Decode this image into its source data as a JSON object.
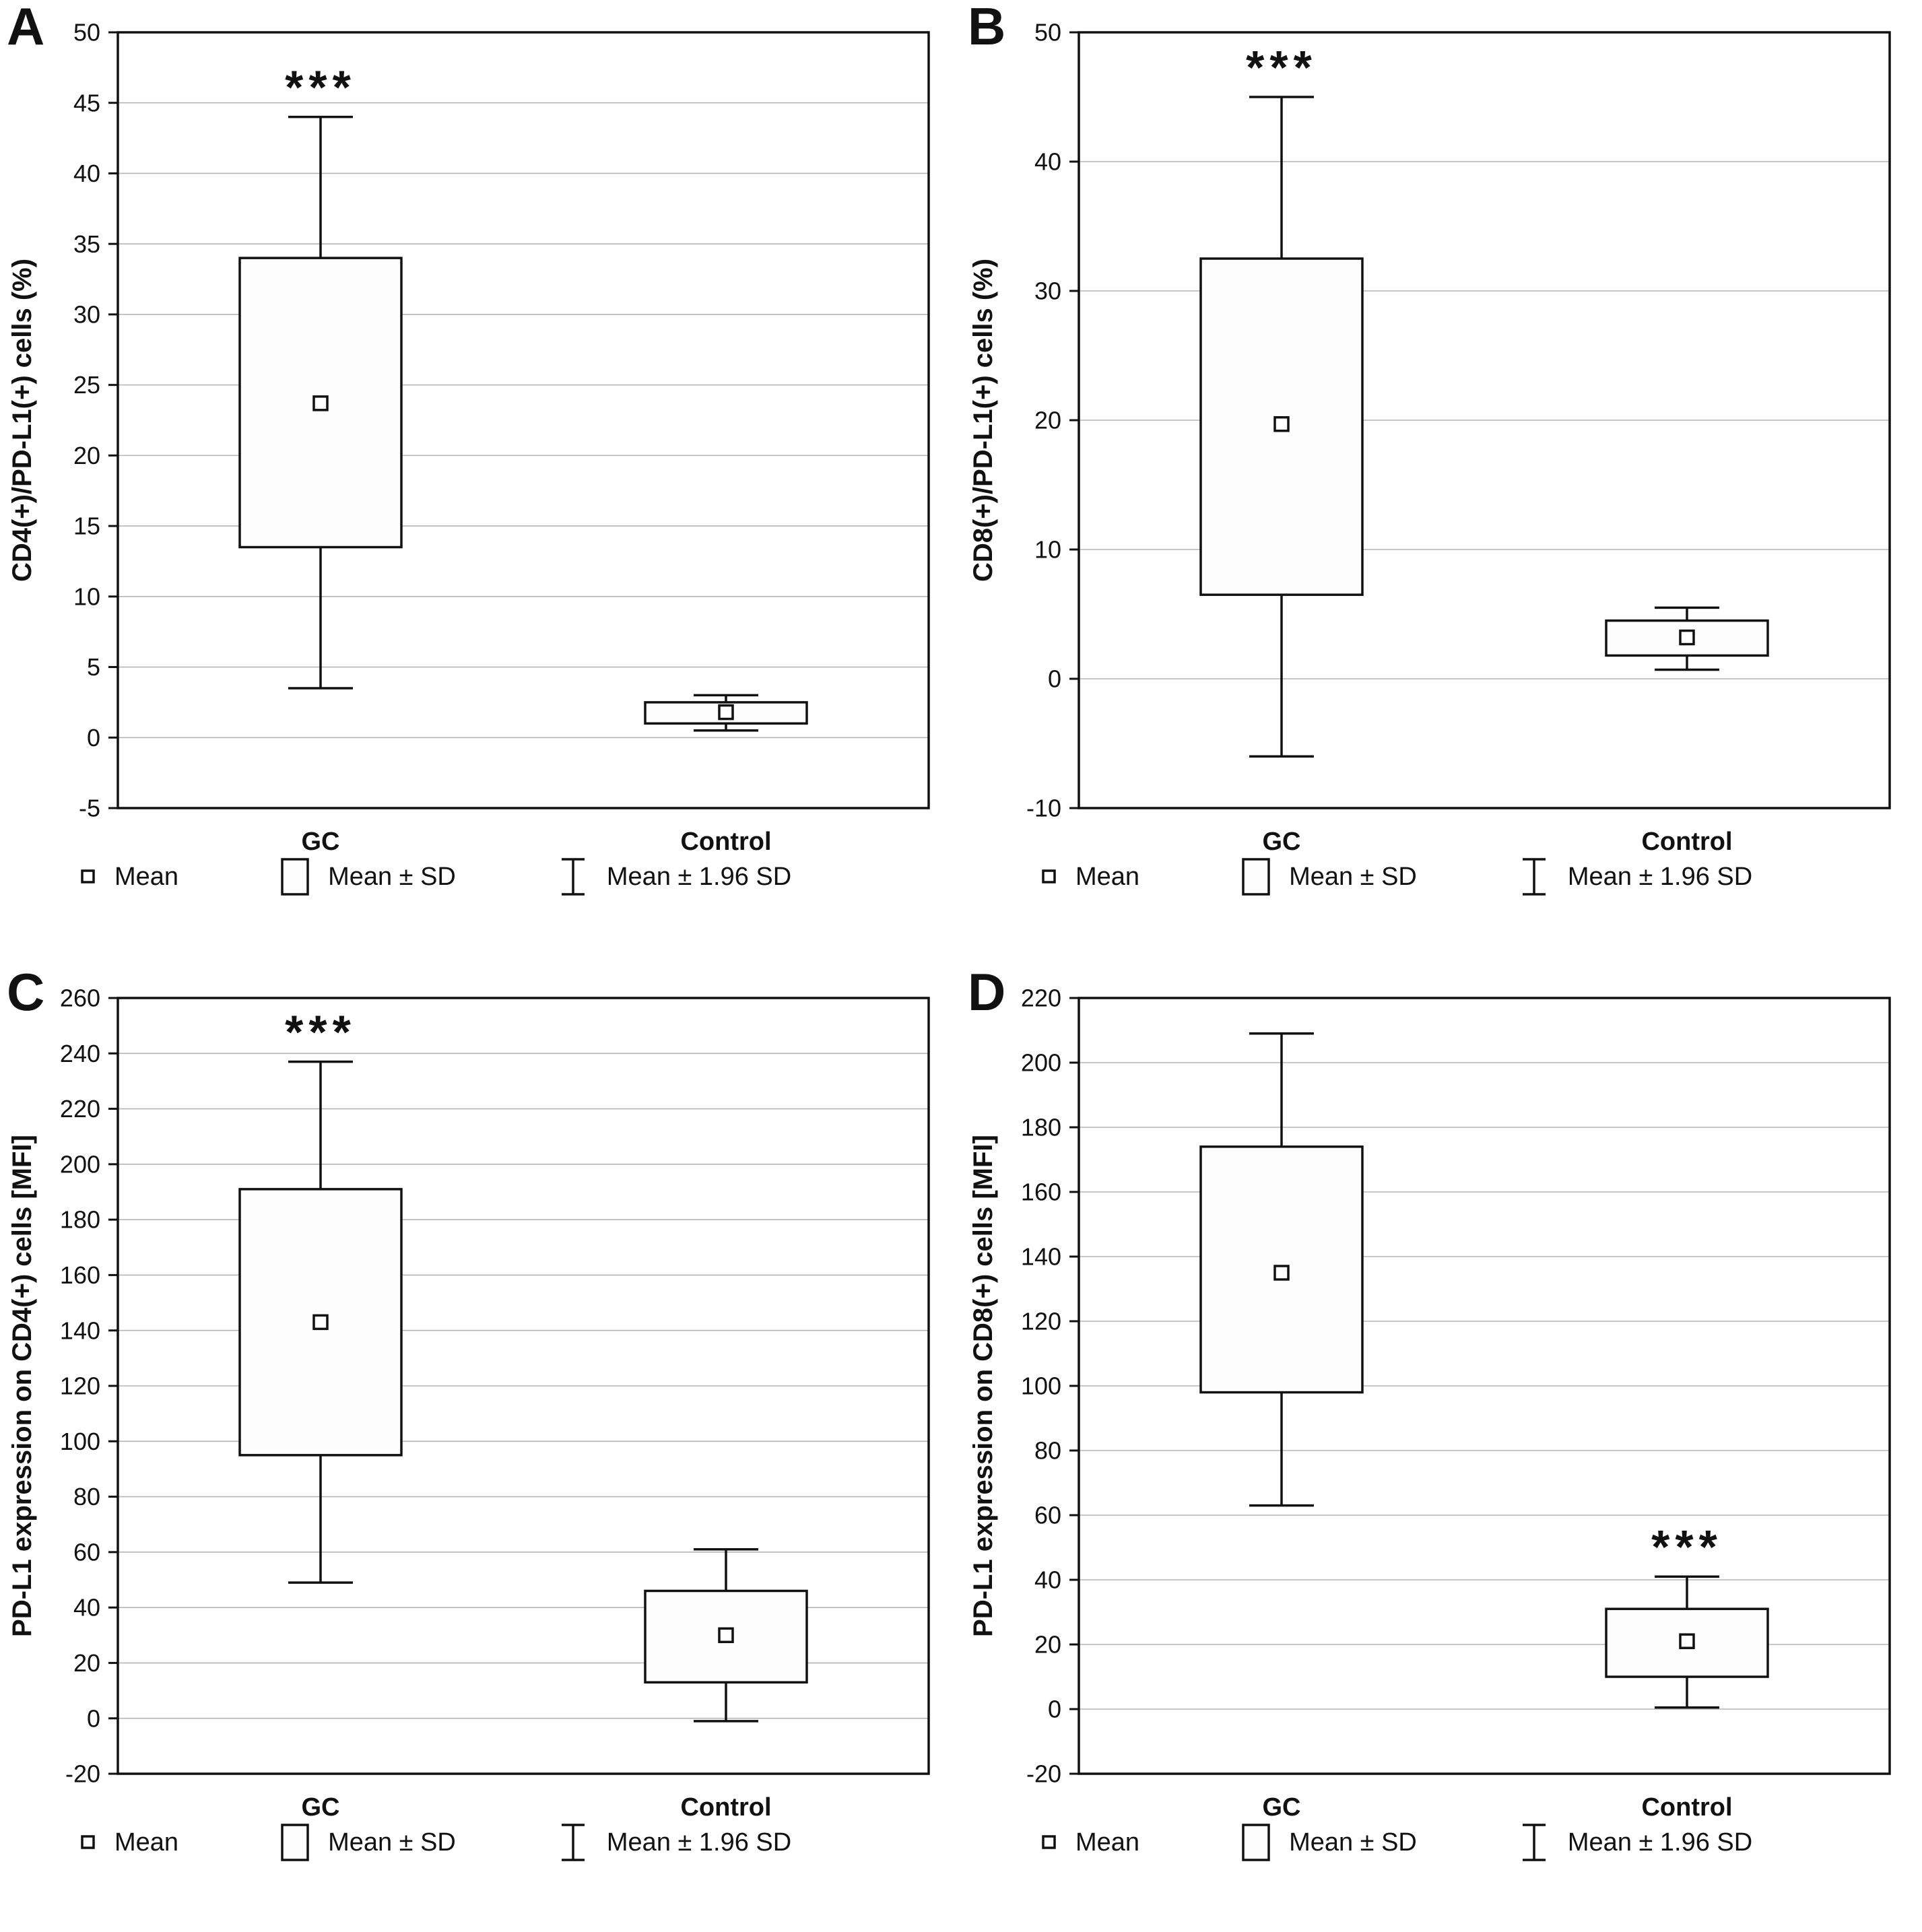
{
  "legend": {
    "mean": "Mean",
    "sd": "Mean ± SD",
    "ci": "Mean ± 1.96 SD"
  },
  "chart_data": [
    {
      "type": "box",
      "letter": "A",
      "title": "",
      "xlabel": "",
      "ylabel": "CD4(+)/PD-L1(+) cells (%)",
      "ylim": [
        -5,
        50
      ],
      "ytick": 5,
      "grid": true,
      "categories": [
        "GC",
        "Control"
      ],
      "groups": [
        {
          "category": "GC",
          "mean": 23.7,
          "box": [
            13.5,
            34.0
          ],
          "whiskers": [
            3.5,
            44.0
          ],
          "annotation": "***"
        },
        {
          "category": "Control",
          "mean": 1.8,
          "box": [
            1.0,
            2.5
          ],
          "whiskers": [
            0.5,
            3.0
          ],
          "annotation": ""
        }
      ]
    },
    {
      "type": "box",
      "letter": "B",
      "title": "",
      "xlabel": "",
      "ylabel": "CD8(+)/PD-L1(+) cells (%)",
      "ylim": [
        -10,
        50
      ],
      "ytick": 10,
      "grid": true,
      "categories": [
        "GC",
        "Control"
      ],
      "groups": [
        {
          "category": "GC",
          "mean": 19.7,
          "box": [
            6.5,
            32.5
          ],
          "whiskers": [
            -6.0,
            45.0
          ],
          "annotation": "***"
        },
        {
          "category": "Control",
          "mean": 3.2,
          "box": [
            1.8,
            4.5
          ],
          "whiskers": [
            0.7,
            5.5
          ],
          "annotation": ""
        }
      ]
    },
    {
      "type": "box",
      "letter": "C",
      "title": "",
      "xlabel": "",
      "ylabel": "PD-L1 expression on CD4(+) cells [MFI]",
      "ylim": [
        -20,
        260
      ],
      "ytick": 20,
      "grid": true,
      "categories": [
        "GC",
        "Control"
      ],
      "groups": [
        {
          "category": "GC",
          "mean": 143,
          "box": [
            95,
            191
          ],
          "whiskers": [
            49,
            237
          ],
          "annotation": "***"
        },
        {
          "category": "Control",
          "mean": 30,
          "box": [
            13,
            46
          ],
          "whiskers": [
            -1,
            61
          ],
          "annotation": ""
        }
      ]
    },
    {
      "type": "box",
      "letter": "D",
      "title": "",
      "xlabel": "",
      "ylabel": "PD-L1 expression on CD8(+) cells [MFI]",
      "ylim": [
        -20,
        220
      ],
      "ytick": 20,
      "grid": true,
      "categories": [
        "GC",
        "Control"
      ],
      "groups": [
        {
          "category": "GC",
          "mean": 135,
          "box": [
            98,
            174
          ],
          "whiskers": [
            63,
            209
          ],
          "annotation": ""
        },
        {
          "category": "Control",
          "mean": 21,
          "box": [
            10,
            31
          ],
          "whiskers": [
            0.5,
            41
          ],
          "annotation": "***"
        }
      ]
    }
  ]
}
